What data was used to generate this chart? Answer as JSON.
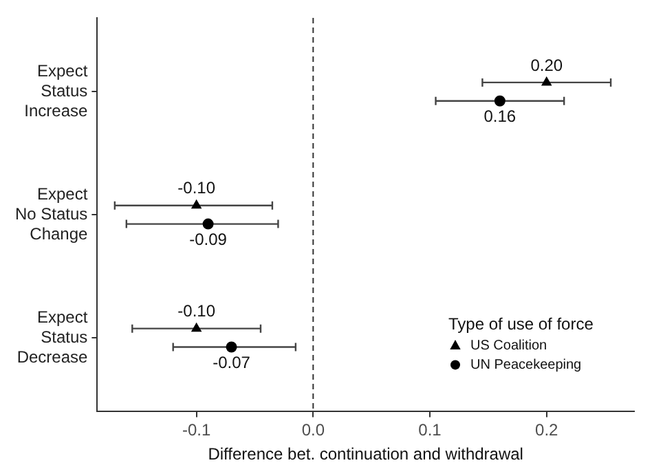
{
  "chart_data": {
    "type": "scatter",
    "orientation": "horizontal",
    "xlabel": "Difference bet. continuation and withdrawal",
    "legend_title": "Type of use of force",
    "legend": "bottom right",
    "grid": false,
    "categories": [
      "Expect\nStatus\nIncrease",
      "Expect\nNo Status\nChange",
      "Expect\nStatus\nDecrease"
    ],
    "series": [
      {
        "name": "US Coalition",
        "color": "#000000",
        "marker": "triangle",
        "values": [
          0.2,
          -0.1,
          -0.1
        ],
        "value_labels": [
          "0.20",
          "-0.10",
          "-0.10"
        ],
        "errors": [
          [
            0.145,
            0.255
          ],
          [
            -0.17,
            -0.035
          ],
          [
            -0.155,
            -0.045
          ]
        ]
      },
      {
        "name": "UN Peacekeeping",
        "color": "#000000",
        "marker": "circle",
        "values": [
          0.16,
          -0.09,
          -0.07
        ],
        "value_labels": [
          "0.16",
          "-0.09",
          "-0.07"
        ],
        "errors": [
          [
            0.105,
            0.215
          ],
          [
            -0.16,
            -0.03
          ],
          [
            -0.12,
            -0.015
          ]
        ]
      }
    ],
    "xlim": [
      -0.185,
      0.275
    ],
    "xticks": [
      -0.1,
      {
        "value": 0,
        "label": "0.0"
      },
      0.1,
      0.2
    ],
    "ref_lines": [
      {
        "axis": "x",
        "value": 0,
        "line_style": "dashed"
      }
    ]
  }
}
